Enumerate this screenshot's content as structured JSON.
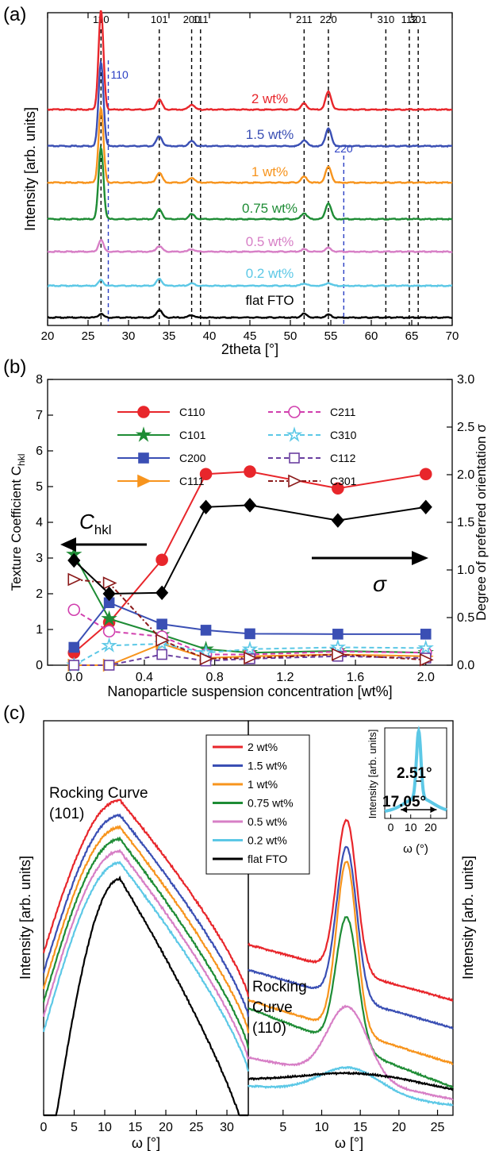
{
  "chart_data": [
    {
      "panel": "(a)",
      "type": "line",
      "xlabel": "2theta [°]",
      "ylabel": "Intensity [arb. units]",
      "xlim": [
        20,
        70
      ],
      "xticks": [
        20,
        25,
        30,
        35,
        40,
        45,
        50,
        55,
        60,
        65,
        70
      ],
      "reference_lines": [
        {
          "label": "110",
          "x": 26.6,
          "color": "#000000"
        },
        {
          "label": "101",
          "x": 33.8,
          "color": "#000000"
        },
        {
          "label": "200",
          "x": 37.8,
          "color": "#000000"
        },
        {
          "label": "111",
          "x": 38.9,
          "color": "#000000"
        },
        {
          "label": "211",
          "x": 51.7,
          "color": "#000000"
        },
        {
          "label": "220",
          "x": 54.7,
          "color": "#000000"
        },
        {
          "label": "310",
          "x": 61.8,
          "color": "#000000"
        },
        {
          "label": "112",
          "x": 64.7,
          "color": "#000000"
        },
        {
          "label": "301",
          "x": 65.8,
          "color": "#000000"
        },
        {
          "label": "110",
          "x": 27.5,
          "color": "#2b3fc4"
        },
        {
          "label": "220",
          "x": 56.6,
          "color": "#2b3fc4"
        }
      ],
      "series": [
        {
          "name": "2 wt%",
          "color": "#e8262b",
          "peaks": [
            {
              "x": 26.6,
              "h": 1.0
            },
            {
              "x": 33.8,
              "h": 0.1
            },
            {
              "x": 37.8,
              "h": 0.05
            },
            {
              "x": 51.7,
              "h": 0.06
            },
            {
              "x": 54.7,
              "h": 0.18
            }
          ]
        },
        {
          "name": "1.5 wt%",
          "color": "#3a4fb4",
          "peaks": [
            {
              "x": 26.6,
              "h": 0.85
            },
            {
              "x": 33.8,
              "h": 0.1
            },
            {
              "x": 37.8,
              "h": 0.05
            },
            {
              "x": 51.7,
              "h": 0.06
            },
            {
              "x": 54.7,
              "h": 0.18
            }
          ]
        },
        {
          "name": "1 wt%",
          "color": "#f7941d",
          "peaks": [
            {
              "x": 26.6,
              "h": 0.75
            },
            {
              "x": 33.8,
              "h": 0.1
            },
            {
              "x": 37.8,
              "h": 0.05
            },
            {
              "x": 51.7,
              "h": 0.06
            },
            {
              "x": 54.7,
              "h": 0.16
            }
          ]
        },
        {
          "name": "0.75 wt%",
          "color": "#1e8c35",
          "peaks": [
            {
              "x": 26.6,
              "h": 0.72
            },
            {
              "x": 33.8,
              "h": 0.1
            },
            {
              "x": 37.8,
              "h": 0.05
            },
            {
              "x": 51.7,
              "h": 0.06
            },
            {
              "x": 54.7,
              "h": 0.16
            }
          ]
        },
        {
          "name": "0.5 wt%",
          "color": "#d77fc6",
          "peaks": [
            {
              "x": 26.6,
              "h": 0.25
            },
            {
              "x": 33.8,
              "h": 0.12
            },
            {
              "x": 37.8,
              "h": 0.05
            },
            {
              "x": 51.7,
              "h": 0.05
            },
            {
              "x": 54.7,
              "h": 0.08
            }
          ]
        },
        {
          "name": "0.2 wt%",
          "color": "#5cc8e6",
          "peaks": [
            {
              "x": 26.6,
              "h": 0.12
            },
            {
              "x": 33.8,
              "h": 0.14
            },
            {
              "x": 37.8,
              "h": 0.05
            },
            {
              "x": 51.7,
              "h": 0.05
            },
            {
              "x": 54.7,
              "h": 0.06
            }
          ]
        },
        {
          "name": "flat FTO",
          "color": "#000000",
          "peaks": [
            {
              "x": 26.6,
              "h": 0.08
            },
            {
              "x": 33.8,
              "h": 0.16
            },
            {
              "x": 37.8,
              "h": 0.05
            },
            {
              "x": 51.7,
              "h": 0.08
            },
            {
              "x": 54.7,
              "h": 0.06
            }
          ]
        }
      ]
    },
    {
      "panel": "(b)",
      "type": "line",
      "xlabel": "Nanoparticle suspension concentration [wt%]",
      "ylabel": "Texture Coefficient C",
      "ylabel_sub": "hkl",
      "y2label": "Degree of preferred orientation σ",
      "xlim": [
        -0.15,
        2.15
      ],
      "ylim": [
        0,
        8
      ],
      "y2lim": [
        0,
        3.0
      ],
      "xticks": [
        "0.0",
        "0.4",
        "0.8",
        "1.2",
        "1.6",
        "2.0"
      ],
      "yticks": [
        "0",
        "1",
        "2",
        "3",
        "4",
        "5",
        "6",
        "7",
        "8"
      ],
      "y2ticks": [
        "0.0",
        "0.5",
        "1.0",
        "1.5",
        "2.0",
        "2.5",
        "3.0"
      ],
      "annotation_left": "C",
      "annotation_left_sub": "hkl",
      "annotation_right": "σ",
      "x": [
        0,
        0.2,
        0.5,
        0.75,
        1.0,
        1.5,
        2.0
      ],
      "series": [
        {
          "name": "C110",
          "color": "#e8262b",
          "marker": "circle-filled",
          "dash": "",
          "values": [
            0.35,
            1.2,
            2.95,
            5.35,
            5.42,
            4.95,
            5.35
          ]
        },
        {
          "name": "C101",
          "color": "#1e8c35",
          "marker": "star-filled",
          "dash": "",
          "values": [
            3.1,
            1.3,
            0.85,
            0.45,
            0.35,
            0.4,
            0.35
          ]
        },
        {
          "name": "C200",
          "color": "#3a4fb4",
          "marker": "square-filled",
          "dash": "",
          "values": [
            0.5,
            1.75,
            1.15,
            0.98,
            0.88,
            0.87,
            0.87
          ]
        },
        {
          "name": "C111",
          "color": "#f7941d",
          "marker": "triangle-right-filled",
          "dash": "",
          "values": [
            0.0,
            0.0,
            0.6,
            0.2,
            0.25,
            0.3,
            0.25
          ]
        },
        {
          "name": "C211",
          "color": "#d13fae",
          "marker": "circle-open",
          "dash": "6,4",
          "values": [
            1.55,
            0.95,
            0.8,
            0.3,
            0.3,
            0.38,
            0.35
          ]
        },
        {
          "name": "C310",
          "color": "#5cc8e6",
          "marker": "star-open",
          "dash": "6,4",
          "values": [
            0.0,
            0.55,
            0.6,
            0.35,
            0.45,
            0.5,
            0.48
          ]
        },
        {
          "name": "C112",
          "color": "#6a3fa0",
          "marker": "square-open",
          "dash": "6,4",
          "values": [
            0.0,
            0.0,
            0.3,
            0.12,
            0.18,
            0.25,
            0.2
          ]
        },
        {
          "name": "C301",
          "color": "#8b1a1a",
          "marker": "triangle-right-open",
          "dash": "6,3,2,3",
          "values": [
            2.4,
            2.3,
            0.7,
            0.18,
            0.2,
            0.3,
            0.15
          ]
        }
      ],
      "sigma_series": {
        "name": "σ",
        "color": "#000000",
        "marker": "diamond-filled",
        "values": [
          1.1,
          0.75,
          0.76,
          1.66,
          1.68,
          1.52,
          1.66
        ]
      }
    },
    {
      "panel": "(c)",
      "type": "line",
      "ylabel": "Intensity [arb. units]",
      "y2label": "Intensity [arb. units]",
      "left": {
        "label_line1": "Rocking Curve",
        "label_line2": "(101)",
        "xlabel": "ω [°]",
        "xlim": [
          0,
          33.5
        ],
        "xticks": [
          0,
          5,
          10,
          15,
          20,
          25,
          30
        ]
      },
      "right": {
        "label_line1": "Rocking",
        "label_line2": "Curve",
        "label_line3": "(110)",
        "xlabel": "ω [°]",
        "xlim": [
          0.5,
          27
        ],
        "xticks": [
          5,
          10,
          15,
          20,
          25
        ]
      },
      "inset": {
        "ylabel": "Intensity [arb. units]",
        "xlabel": "ω (°)",
        "xticks": [
          0,
          10,
          20
        ],
        "fwhm_narrow": "2.51°",
        "fwhm_wide": "17.05°",
        "color": "#5cc8e6"
      },
      "series": [
        {
          "name": "2 wt%",
          "color": "#e8262b"
        },
        {
          "name": "1.5 wt%",
          "color": "#3a4fb4"
        },
        {
          "name": "1 wt%",
          "color": "#f7941d"
        },
        {
          "name": "0.75 wt%",
          "color": "#1e8c35"
        },
        {
          "name": "0.5 wt%",
          "color": "#d77fc6"
        },
        {
          "name": "0.2 wt%",
          "color": "#5cc8e6"
        },
        {
          "name": "flat FTO",
          "color": "#000000"
        }
      ]
    }
  ]
}
